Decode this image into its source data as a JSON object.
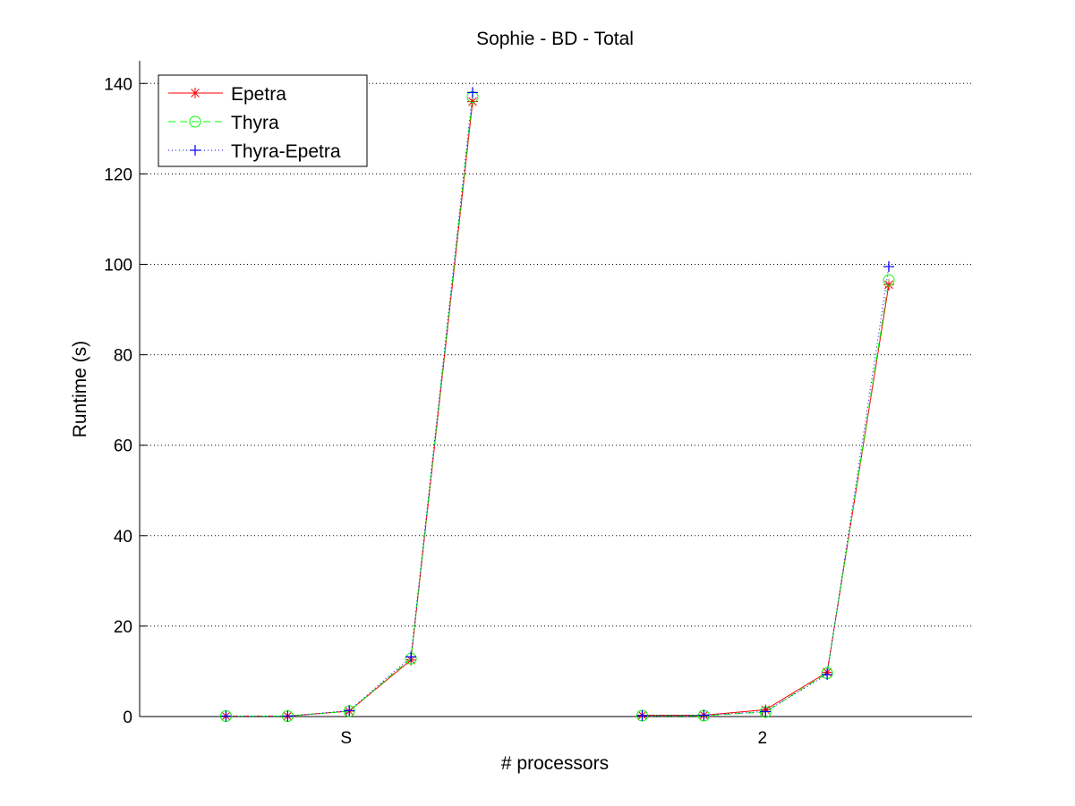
{
  "chart_data": {
    "type": "line",
    "title": "Sophie - BD - Total",
    "xlabel": "# processors",
    "ylabel": "Runtime (s)",
    "ylim": [
      0,
      145
    ],
    "yticks": [
      0,
      20,
      40,
      60,
      80,
      100,
      120,
      140
    ],
    "xticks": [
      {
        "label": "S",
        "x": 3.35
      },
      {
        "label": "2",
        "x": 10.1
      }
    ],
    "xlim": [
      0,
      13.5
    ],
    "grid": "y-dotted",
    "legend_position": "top-left",
    "groups": [
      {
        "x": [
          1.4,
          2.4,
          3.4,
          4.4,
          5.4
        ]
      },
      {
        "x": [
          8.15,
          9.15,
          10.15,
          11.15,
          12.15
        ]
      }
    ],
    "series": [
      {
        "name": "Epetra",
        "color": "#ff0000",
        "line": "solid",
        "marker": "asterisk",
        "values": [
          [
            0.1,
            0.1,
            1.2,
            12.5,
            136
          ],
          [
            0.3,
            0.3,
            1.5,
            9.8,
            95.5
          ]
        ]
      },
      {
        "name": "Thyra",
        "color": "#00ff00",
        "line": "dashed",
        "marker": "circle",
        "values": [
          [
            0.1,
            0.1,
            1.2,
            12.8,
            137
          ],
          [
            0.2,
            0.2,
            1.0,
            9.6,
            96.5
          ]
        ]
      },
      {
        "name": "Thyra-Epetra",
        "color": "#0000ff",
        "line": "dotted",
        "marker": "plus",
        "values": [
          [
            0.1,
            0.1,
            1.3,
            13.2,
            138
          ],
          [
            0.2,
            0.3,
            1.1,
            9.3,
            99.5
          ]
        ]
      }
    ]
  }
}
